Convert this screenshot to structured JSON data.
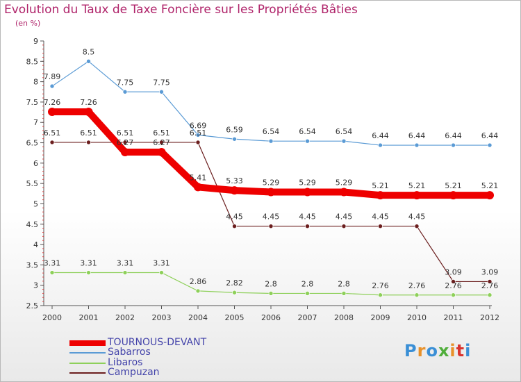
{
  "title": "Evolution du Taux de Taxe Foncière sur les Propriétés Bâties",
  "unit": "(en %)",
  "logo": {
    "text": "Proxiti",
    "letters": [
      "P",
      "r",
      "o",
      "x",
      "i",
      "t",
      "i"
    ],
    "colors": [
      "#3a8fd6",
      "#e8912a",
      "#3a8fd6",
      "#4fae3a",
      "#e8912a",
      "#d8332f",
      "#3a8fd6"
    ]
  },
  "chart_data": {
    "type": "line",
    "x": [
      "2000",
      "2001",
      "2002",
      "2003",
      "2004",
      "2005",
      "2006",
      "2007",
      "2008",
      "2009",
      "2010",
      "2011",
      "2012"
    ],
    "ylim": [
      2.5,
      9
    ],
    "yticks": [
      "2.5",
      "3",
      "3.5",
      "4",
      "4.5",
      "5",
      "5.5",
      "6",
      "6.5",
      "7",
      "7.5",
      "8",
      "8.5",
      "9"
    ],
    "grid": false,
    "legend": "bottom-left",
    "series": [
      {
        "name": "Campuzan",
        "color": "#6b1e1e",
        "width": "thin",
        "values": [
          6.51,
          6.51,
          6.51,
          6.51,
          6.51,
          4.45,
          4.45,
          4.45,
          4.45,
          4.45,
          4.45,
          3.09,
          3.09
        ],
        "labels": [
          "6.51",
          "6.51",
          "6.51",
          "6.51",
          "6.51",
          "4.45",
          "4.45",
          "4.45",
          "4.45",
          "4.45",
          "4.45",
          "3.09",
          "3.09"
        ]
      },
      {
        "name": "Libaros",
        "color": "#8ed05a",
        "width": "thin",
        "values": [
          3.31,
          3.31,
          3.31,
          3.31,
          2.86,
          2.82,
          2.8,
          2.8,
          2.8,
          2.76,
          2.76,
          2.76,
          2.76
        ],
        "labels": [
          "3.31",
          "3.31",
          "3.31",
          "3.31",
          "2.86",
          "2.82",
          "2.8",
          "2.8",
          "2.8",
          "2.76",
          "2.76",
          "2.76",
          "2.76"
        ]
      },
      {
        "name": "Sabarros",
        "color": "#5b9bd5",
        "width": "thin",
        "values": [
          7.89,
          8.5,
          7.75,
          7.75,
          6.69,
          6.59,
          6.54,
          6.54,
          6.54,
          6.44,
          6.44,
          6.44,
          6.44
        ],
        "labels": [
          "7.89",
          "8.5",
          "7.75",
          "7.75",
          "6.69",
          "6.59",
          "6.54",
          "6.54",
          "6.54",
          "6.44",
          "6.44",
          "6.44",
          "6.44"
        ]
      },
      {
        "name": "TOURNOUS-DEVANT",
        "color": "#ee0000",
        "width": "thick",
        "values": [
          7.26,
          7.26,
          6.27,
          6.27,
          5.41,
          5.33,
          5.29,
          5.29,
          5.29,
          5.21,
          5.21,
          5.21,
          5.21
        ],
        "labels": [
          "7.26",
          "7.26",
          "6.27",
          "6.27",
          "5.41",
          "5.33",
          "5.29",
          "5.29",
          "5.29",
          "5.21",
          "5.21",
          "5.21",
          "5.21"
        ]
      }
    ],
    "legend_order": [
      "TOURNOUS-DEVANT",
      "Sabarros",
      "Libaros",
      "Campuzan"
    ]
  }
}
